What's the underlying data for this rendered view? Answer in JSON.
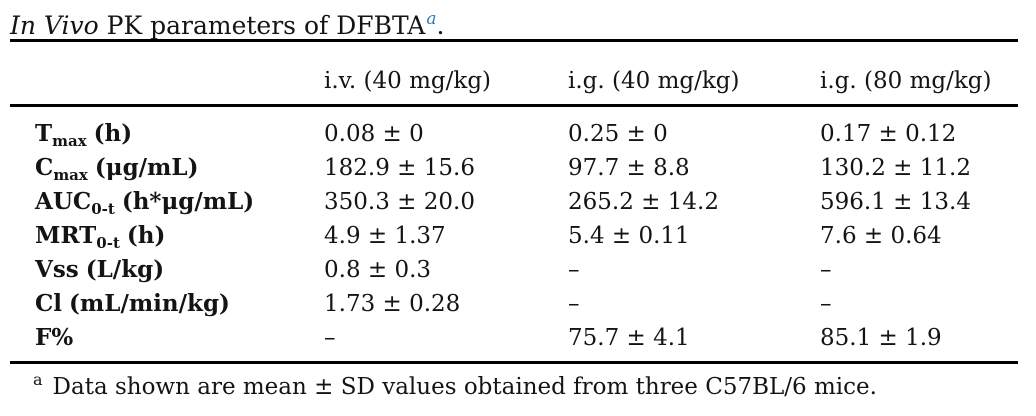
{
  "title": {
    "prefix_italic": "In Vivo",
    "main": " PK parameters of DFBTA",
    "footnote_marker": "a",
    "suffix": "."
  },
  "colors": {
    "footnote_link_blue": "#2d7cb9",
    "text": "#141414",
    "rule": "#000000",
    "background": "#ffffff"
  },
  "table": {
    "column_headers": [
      "",
      "i.v. (40 mg/kg)",
      "i.g. (40 mg/kg)",
      "i.g. (80 mg/kg)"
    ],
    "rows": [
      {
        "label_main": "T",
        "label_sub": "max",
        "label_unit": "(h)",
        "values": [
          "0.08 ± 0",
          "0.25 ± 0",
          "0.17 ± 0.12"
        ]
      },
      {
        "label_main": "C",
        "label_sub": "max",
        "label_unit": "(μg/mL)",
        "values": [
          "182.9 ± 15.6",
          "97.7 ± 8.8",
          "130.2 ± 11.2"
        ]
      },
      {
        "label_main": "AUC",
        "label_sub": "0-t",
        "label_unit": "(h*μg/mL)",
        "values": [
          "350.3 ± 20.0",
          "265.2 ± 14.2",
          "596.1 ± 13.4"
        ]
      },
      {
        "label_main": "MRT",
        "label_sub": "0-t",
        "label_unit": "(h)",
        "values": [
          "4.9 ± 1.37",
          "5.4 ± 0.11",
          "7.6 ± 0.64"
        ]
      },
      {
        "label_main": "Vss",
        "label_sub": "",
        "label_unit": "(L/kg)",
        "values": [
          "0.8 ± 0.3",
          "–",
          "–"
        ]
      },
      {
        "label_main": "Cl",
        "label_sub": "",
        "label_unit": "(mL/min/kg)",
        "values": [
          "1.73 ± 0.28",
          "–",
          "–"
        ]
      },
      {
        "label_main": "F%",
        "label_sub": "",
        "label_unit": "",
        "values": [
          "–",
          "75.7 ± 4.1",
          "85.1 ± 1.9"
        ]
      }
    ]
  },
  "footnote": {
    "marker": "a",
    "text": "Data shown are mean ± SD values obtained from three C57BL/6 mice."
  }
}
